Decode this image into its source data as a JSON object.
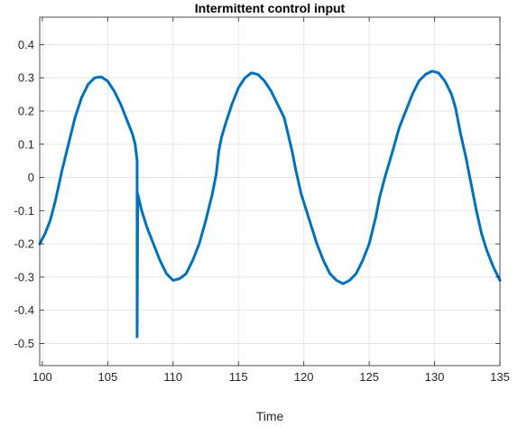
{
  "chart_data": {
    "type": "line",
    "title": "Intermittent control input",
    "xlabel": "Time",
    "ylabel": "",
    "xlim": [
      99.8,
      135
    ],
    "ylim": [
      -0.5667,
      0.4827
    ],
    "grid": true,
    "x_ticks": [
      100,
      105,
      110,
      115,
      120,
      125,
      130,
      135
    ],
    "x_tick_labels": [
      "100",
      "105",
      "110",
      "115",
      "120",
      "125",
      "130",
      "135"
    ],
    "y_ticks": [
      0.4,
      0.3,
      0.2,
      0.1,
      0,
      -0.1,
      -0.2,
      -0.3,
      -0.4,
      -0.5
    ],
    "y_tick_labels": [
      "0.4",
      "0.3",
      "0.2",
      "0.1",
      "0",
      "-0.1",
      "-0.2",
      "-0.3",
      "-0.4",
      "-0.5"
    ],
    "series": [
      {
        "color": "#0072BD",
        "x": [
          99.8,
          100.2,
          100.6,
          101.0,
          101.5,
          102.0,
          102.5,
          103.0,
          103.5,
          104.0,
          104.5,
          105.0,
          105.5,
          106.0,
          106.3,
          106.6,
          106.9,
          107.1,
          107.25,
          107.25,
          107.3,
          107.6,
          108.0,
          108.5,
          109.0,
          109.5,
          110.0,
          110.5,
          111.0,
          111.5,
          112.0,
          112.5,
          113.0,
          113.3,
          113.5,
          113.7,
          114.0,
          114.5,
          115.0,
          115.5,
          116.0,
          116.5,
          117.0,
          117.5,
          118.0,
          118.5,
          118.8,
          119.1,
          119.4,
          119.8,
          120.2,
          120.6,
          121.0,
          121.5,
          122.0,
          122.5,
          123.0,
          123.5,
          124.0,
          124.5,
          125.0,
          125.5,
          125.8,
          126.2,
          126.8,
          127.3,
          127.8,
          128.3,
          128.8,
          129.3,
          129.8,
          130.3,
          130.8,
          131.3,
          131.6,
          132.0,
          132.4,
          132.8,
          133.2,
          133.6,
          134.0,
          134.5,
          135.0
        ],
        "y": [
          -0.2,
          -0.17,
          -0.13,
          -0.07,
          0.02,
          0.1,
          0.18,
          0.24,
          0.28,
          0.3,
          0.303,
          0.29,
          0.26,
          0.22,
          0.19,
          0.16,
          0.13,
          0.1,
          0.05,
          -0.48,
          -0.05,
          -0.1,
          -0.15,
          -0.2,
          -0.25,
          -0.29,
          -0.31,
          -0.305,
          -0.29,
          -0.25,
          -0.2,
          -0.13,
          -0.05,
          0.01,
          0.08,
          0.12,
          0.16,
          0.22,
          0.27,
          0.3,
          0.315,
          0.31,
          0.29,
          0.26,
          0.22,
          0.18,
          0.13,
          0.08,
          0.02,
          -0.05,
          -0.1,
          -0.15,
          -0.2,
          -0.25,
          -0.29,
          -0.31,
          -0.32,
          -0.31,
          -0.29,
          -0.25,
          -0.2,
          -0.12,
          -0.06,
          0.0,
          0.08,
          0.15,
          0.2,
          0.25,
          0.29,
          0.31,
          0.32,
          0.315,
          0.29,
          0.25,
          0.21,
          0.13,
          0.06,
          -0.02,
          -0.1,
          -0.17,
          -0.22,
          -0.27,
          -0.31
        ]
      }
    ]
  }
}
